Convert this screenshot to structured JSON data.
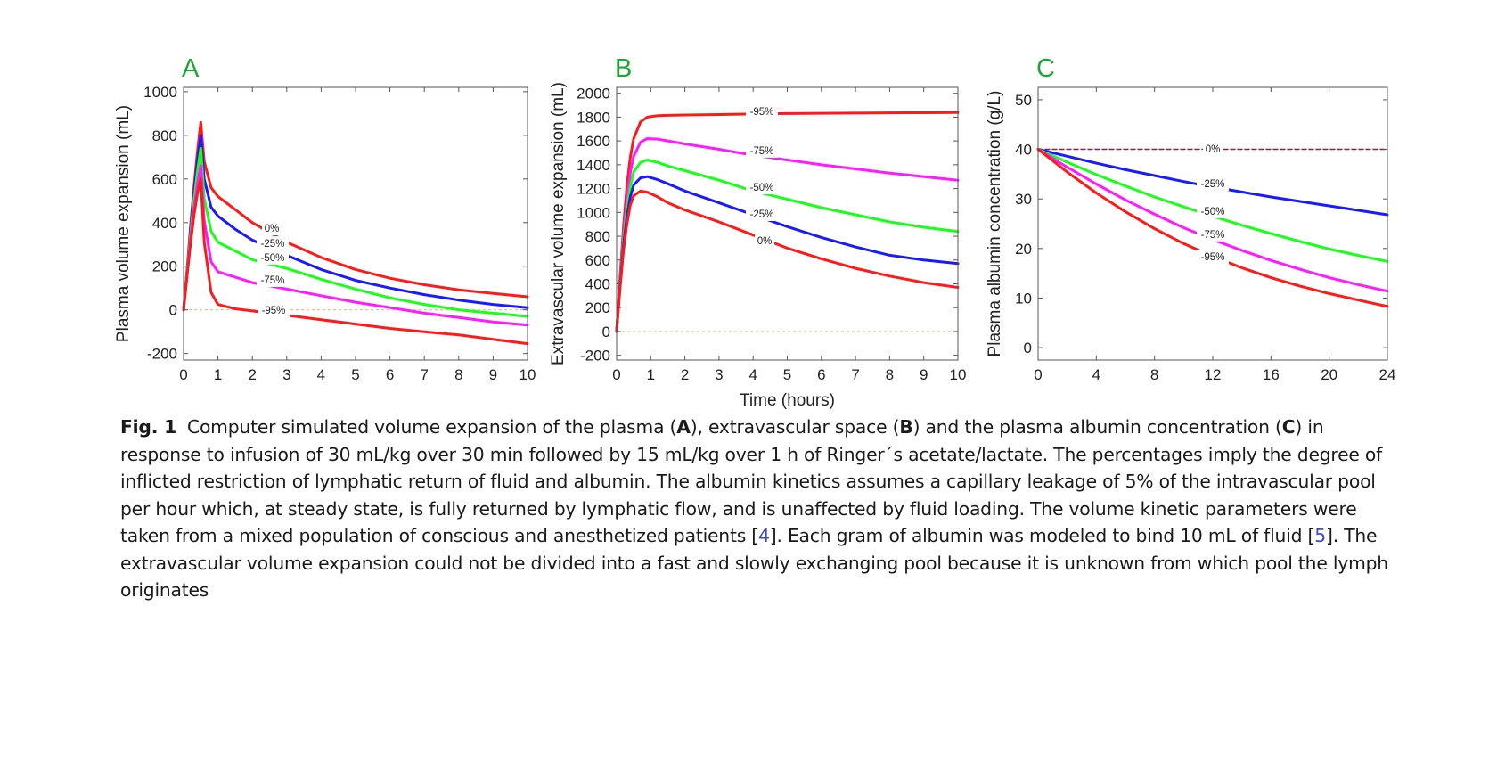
{
  "chart_data": [
    {
      "type": "line",
      "panel_letter": "A",
      "ylabel": "Plasma volume expansion (mL)",
      "xlabel": "",
      "xlim": [
        0,
        10
      ],
      "ylim": [
        -230,
        1020
      ],
      "xticks": [
        0,
        1,
        2,
        3,
        4,
        5,
        6,
        7,
        8,
        9,
        10
      ],
      "yticks": [
        -200,
        0,
        200,
        400,
        600,
        800,
        1000
      ],
      "zero_line": true,
      "grid": false,
      "series": [
        {
          "name": "0%",
          "color": "#ff1a1a",
          "x": [
            0,
            0.1,
            0.2,
            0.3,
            0.4,
            0.5,
            0.6,
            0.8,
            1,
            1.5,
            2,
            3,
            4,
            5,
            6,
            7,
            8,
            9,
            10
          ],
          "y": [
            0,
            180,
            380,
            560,
            720,
            860,
            680,
            560,
            520,
            460,
            400,
            310,
            240,
            185,
            145,
            115,
            92,
            75,
            60
          ]
        },
        {
          "name": "-25%",
          "color": "#1a1aff",
          "x": [
            0,
            0.1,
            0.2,
            0.3,
            0.4,
            0.5,
            0.6,
            0.8,
            1,
            1.5,
            2,
            3,
            4,
            5,
            6,
            7,
            8,
            9,
            10
          ],
          "y": [
            0,
            175,
            360,
            530,
            680,
            800,
            600,
            470,
            430,
            370,
            320,
            250,
            185,
            135,
            100,
            70,
            45,
            25,
            10
          ]
        },
        {
          "name": "-50%",
          "color": "#1aff1a",
          "x": [
            0,
            0.1,
            0.2,
            0.3,
            0.4,
            0.5,
            0.6,
            0.8,
            1,
            1.5,
            2,
            3,
            4,
            5,
            6,
            7,
            8,
            9,
            10
          ],
          "y": [
            0,
            170,
            340,
            500,
            630,
            740,
            510,
            360,
            310,
            270,
            230,
            190,
            140,
            95,
            55,
            25,
            0,
            -15,
            -30
          ]
        },
        {
          "name": "-75%",
          "color": "#ff1aff",
          "x": [
            0,
            0.1,
            0.2,
            0.3,
            0.4,
            0.5,
            0.6,
            0.8,
            1,
            1.5,
            2,
            3,
            4,
            5,
            6,
            7,
            8,
            9,
            10
          ],
          "y": [
            0,
            160,
            320,
            460,
            570,
            660,
            410,
            220,
            175,
            150,
            125,
            95,
            65,
            35,
            10,
            -15,
            -35,
            -55,
            -70
          ]
        },
        {
          "name": "-95%",
          "color": "#ff1a1a",
          "x": [
            0,
            0.1,
            0.2,
            0.3,
            0.4,
            0.5,
            0.6,
            0.8,
            1,
            1.5,
            2,
            3,
            4,
            5,
            6,
            7,
            8,
            9,
            10
          ],
          "y": [
            0,
            155,
            300,
            430,
            530,
            600,
            310,
            80,
            25,
            5,
            -5,
            -25,
            -45,
            -65,
            -85,
            -100,
            -115,
            -135,
            -155
          ]
        }
      ]
    },
    {
      "type": "line",
      "panel_letter": "B",
      "ylabel": "Extravascular volume expansion (mL)",
      "xlabel": "Time (hours)",
      "xlim": [
        0,
        10
      ],
      "ylim": [
        -240,
        2050
      ],
      "xticks": [
        0,
        1,
        2,
        3,
        4,
        5,
        6,
        7,
        8,
        9,
        10
      ],
      "yticks": [
        -200,
        0,
        200,
        400,
        600,
        800,
        1000,
        1200,
        1400,
        1600,
        1800,
        2000
      ],
      "zero_line": true,
      "grid": false,
      "series": [
        {
          "name": "-95%",
          "color": "#ff1a1a",
          "x": [
            0,
            0.1,
            0.2,
            0.3,
            0.4,
            0.5,
            0.7,
            0.9,
            1.2,
            1.5,
            2,
            3,
            4,
            5,
            6,
            7,
            8,
            9,
            10
          ],
          "y": [
            0,
            450,
            880,
            1220,
            1460,
            1620,
            1760,
            1800,
            1812,
            1815,
            1818,
            1822,
            1826,
            1830,
            1832,
            1834,
            1836,
            1837,
            1838
          ]
        },
        {
          "name": "-75%",
          "color": "#ff1aff",
          "x": [
            0,
            0.1,
            0.2,
            0.3,
            0.4,
            0.5,
            0.7,
            0.9,
            1.2,
            1.5,
            2,
            3,
            4,
            5,
            6,
            7,
            8,
            9,
            10
          ],
          "y": [
            0,
            420,
            800,
            1100,
            1330,
            1470,
            1590,
            1620,
            1615,
            1600,
            1575,
            1530,
            1480,
            1440,
            1400,
            1365,
            1330,
            1300,
            1270
          ]
        },
        {
          "name": "-50%",
          "color": "#1aff1a",
          "x": [
            0,
            0.1,
            0.2,
            0.3,
            0.4,
            0.5,
            0.7,
            0.9,
            1.2,
            1.5,
            2,
            3,
            4,
            5,
            6,
            7,
            8,
            9,
            10
          ],
          "y": [
            0,
            400,
            760,
            1030,
            1220,
            1340,
            1420,
            1440,
            1420,
            1390,
            1350,
            1270,
            1180,
            1110,
            1040,
            980,
            920,
            875,
            840
          ]
        },
        {
          "name": "-25%",
          "color": "#1a1aff",
          "x": [
            0,
            0.1,
            0.2,
            0.3,
            0.4,
            0.5,
            0.7,
            0.9,
            1.2,
            1.5,
            2,
            3,
            4,
            5,
            6,
            7,
            8,
            9,
            10
          ],
          "y": [
            0,
            380,
            720,
            960,
            1130,
            1230,
            1290,
            1300,
            1275,
            1240,
            1180,
            1080,
            980,
            880,
            790,
            710,
            640,
            600,
            570
          ]
        },
        {
          "name": "0%",
          "color": "#ff1a1a",
          "x": [
            0,
            0.1,
            0.2,
            0.3,
            0.4,
            0.5,
            0.7,
            0.9,
            1.2,
            1.5,
            2,
            3,
            4,
            5,
            6,
            7,
            8,
            9,
            10
          ],
          "y": [
            0,
            360,
            680,
            900,
            1060,
            1140,
            1180,
            1170,
            1130,
            1080,
            1020,
            920,
            810,
            700,
            610,
            530,
            465,
            410,
            370
          ]
        }
      ]
    },
    {
      "type": "line",
      "panel_letter": "C",
      "ylabel": "Plasma albumin concentration (g/L)",
      "xlabel": "",
      "xlim": [
        0,
        24
      ],
      "ylim": [
        -2.5,
        52.5
      ],
      "xticks": [
        0,
        4,
        8,
        12,
        16,
        20,
        24
      ],
      "yticks": [
        0,
        10,
        20,
        30,
        40,
        50
      ],
      "zero_line": false,
      "grid": false,
      "series": [
        {
          "name": "0%",
          "color": "#9b1c3a",
          "dashed": true,
          "x": [
            0,
            24
          ],
          "y": [
            40,
            40
          ]
        },
        {
          "name": "-25%",
          "color": "#1a1aff",
          "x": [
            0,
            2,
            4,
            6,
            8,
            10,
            12,
            14,
            16,
            18,
            20,
            22,
            24
          ],
          "y": [
            40,
            38.6,
            37.2,
            35.9,
            34.7,
            33.5,
            32.4,
            31.4,
            30.4,
            29.5,
            28.6,
            27.7,
            26.8
          ]
        },
        {
          "name": "-50%",
          "color": "#1aff1a",
          "x": [
            0,
            2,
            4,
            6,
            8,
            10,
            12,
            14,
            16,
            18,
            20,
            22,
            24
          ],
          "y": [
            40,
            37.4,
            34.9,
            32.6,
            30.4,
            28.4,
            26.5,
            24.7,
            23.0,
            21.4,
            19.9,
            18.6,
            17.4
          ]
        },
        {
          "name": "-75%",
          "color": "#ff1aff",
          "x": [
            0,
            2,
            4,
            6,
            8,
            10,
            12,
            14,
            16,
            18,
            20,
            22,
            24
          ],
          "y": [
            40,
            36.4,
            33.0,
            29.8,
            26.9,
            24.2,
            21.8,
            19.6,
            17.6,
            15.8,
            14.1,
            12.7,
            11.4
          ]
        },
        {
          "name": "-95%",
          "color": "#ff1a1a",
          "x": [
            0,
            2,
            4,
            6,
            8,
            10,
            12,
            14,
            16,
            18,
            20,
            22,
            24
          ],
          "y": [
            40,
            35.4,
            31.2,
            27.4,
            24.0,
            21.0,
            18.4,
            16.1,
            14.1,
            12.4,
            10.9,
            9.6,
            8.3
          ]
        }
      ]
    }
  ],
  "caption": {
    "figure_label": "Fig. 1",
    "part_1": "Computer simulated volume expansion of the plasma (",
    "panel_a": "A",
    "part_2": "), extravascular space (",
    "panel_b": "B",
    "part_3": ") and the plasma albumin concentration (",
    "panel_c": "C",
    "part_4": ") in response to infusion of 30 mL/kg over 30 min followed by 15 mL/kg over 1 h of Ringer´s acetate/lactate. The percentages imply the degree of inflicted restriction of lymphatic return of fluid and albumin. The albumin kinetics assumes a capillary leakage of 5% of the intravascular pool per hour which, at steady state, is fully returned by lymphatic flow, and is unaffected by fluid loading. The volume kinetic parameters were taken from a mixed population of conscious and anesthetized patients [",
    "ref_1": "4",
    "part_5": "]. Each gram of albumin was modeled to bind 10 mL of fluid [",
    "ref_2": "5",
    "part_6": "]. The extravascular volume expansion could not be divided into a fast and slowly exchanging pool because it is unknown from which pool the lymph originates"
  },
  "colors": {
    "panel_letter": "#1fa535",
    "axis": "#555555",
    "zero_line": "#c8c87a",
    "reference_link": "#3a49c9"
  }
}
